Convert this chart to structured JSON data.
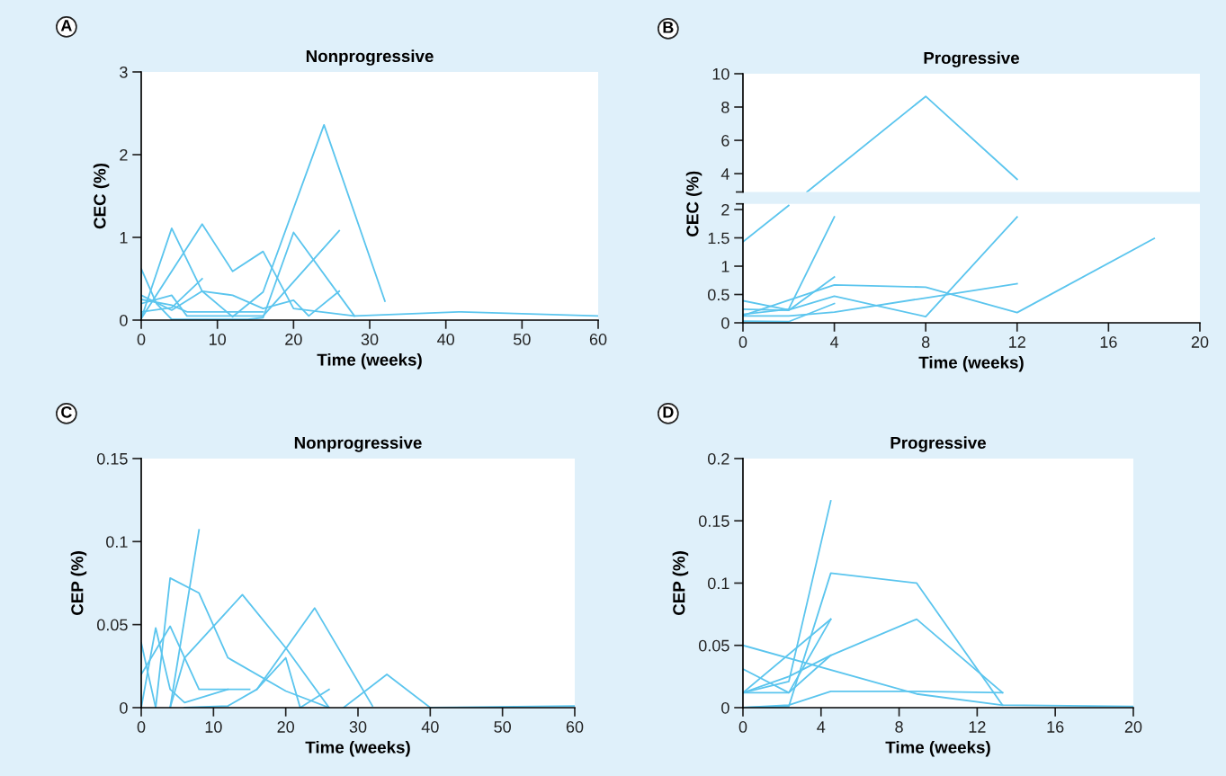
{
  "chart_data": [
    {
      "type": "line",
      "title": "Nonprogressive",
      "xlabel": "Time (weeks)",
      "ylabel": "CEC (%)",
      "annotations": [
        "A"
      ],
      "xlim": [
        0,
        60
      ],
      "ylim": [
        0,
        3
      ],
      "xticks": [
        0,
        10,
        20,
        30,
        40,
        50,
        60
      ],
      "yticks": [
        0,
        1,
        2,
        3
      ],
      "series": [
        {
          "color": "#5bc5ee",
          "x": [
            0,
            4,
            8,
            12,
            16,
            24,
            32
          ],
          "values": [
            0.02,
            1.11,
            0.35,
            0.04,
            0.34,
            2.36,
            0.23
          ]
        },
        {
          "color": "#5bc5ee",
          "x": [
            0,
            8,
            12,
            16,
            20,
            28,
            42,
            60
          ],
          "values": [
            0.02,
            1.16,
            0.59,
            0.83,
            0.14,
            0.05,
            0.1,
            0.05
          ]
        },
        {
          "color": "#5bc5ee",
          "x": [
            0,
            2,
            4,
            14,
            16,
            20,
            28
          ],
          "values": [
            0.62,
            0.2,
            0.01,
            0.01,
            0.03,
            1.06,
            0.05
          ]
        },
        {
          "color": "#5bc5ee",
          "x": [
            0,
            4,
            8,
            12,
            16,
            20,
            22,
            26
          ],
          "values": [
            0.3,
            0.12,
            0.35,
            0.3,
            0.14,
            0.24,
            0.05,
            0.35
          ]
        },
        {
          "color": "#5bc5ee",
          "x": [
            0,
            4,
            6,
            16,
            26
          ],
          "values": [
            0.2,
            0.3,
            0.05,
            0.05,
            1.08
          ]
        },
        {
          "color": "#5bc5ee",
          "x": [
            0,
            4,
            8
          ],
          "values": [
            0.1,
            0.15,
            0.5
          ]
        },
        {
          "color": "#5bc5ee",
          "x": [
            0,
            4,
            6,
            16
          ],
          "values": [
            0.25,
            0.18,
            0.1,
            0.1
          ]
        }
      ]
    },
    {
      "type": "line",
      "title": "Progressive",
      "annotations": [
        "B"
      ],
      "xlim": [
        0,
        20
      ],
      "ylim": [
        2.9,
        10
      ],
      "yticks": [
        4,
        6,
        8,
        10
      ],
      "tick_labels": "y",
      "series": [
        {
          "color": "#5bc5ee",
          "x": [
            2.8,
            8,
            12
          ],
          "values": [
            2.9,
            8.64,
            3.66
          ]
        }
      ]
    },
    {
      "type": "line",
      "xlabel": "Time (weeks)",
      "ylabel": "CEC (%)",
      "xlim": [
        0,
        20
      ],
      "ylim": [
        0,
        2.1
      ],
      "xticks": [
        0,
        4,
        8,
        12,
        16,
        20
      ],
      "yticks": [
        0,
        0.5,
        1,
        1.5,
        2
      ],
      "series": [
        {
          "color": "#5bc5ee",
          "x": [
            0,
            2
          ],
          "values": [
            1.43,
            2.07
          ]
        },
        {
          "color": "#5bc5ee",
          "x": [
            0,
            2,
            4
          ],
          "values": [
            0.15,
            0.24,
            1.87
          ]
        },
        {
          "color": "#5bc5ee",
          "x": [
            0,
            2,
            4,
            8,
            12
          ],
          "values": [
            0.39,
            0.23,
            0.47,
            0.11,
            1.87
          ]
        },
        {
          "color": "#5bc5ee",
          "x": [
            0,
            4,
            8,
            12,
            18
          ],
          "values": [
            0.13,
            0.67,
            0.63,
            0.18,
            1.49
          ]
        },
        {
          "color": "#5bc5ee",
          "x": [
            0,
            2,
            4
          ],
          "values": [
            0.24,
            0.22,
            0.81
          ]
        },
        {
          "color": "#5bc5ee",
          "x": [
            0,
            2,
            4,
            8,
            12
          ],
          "values": [
            0.12,
            0.12,
            0.19,
            0.44,
            0.69
          ]
        },
        {
          "color": "#5bc5ee",
          "x": [
            0,
            2,
            4
          ],
          "values": [
            0.03,
            0.02,
            0.34
          ]
        }
      ]
    },
    {
      "type": "line",
      "title": "Nonprogressive",
      "xlabel": "Time (weeks)",
      "ylabel": "CEP (%)",
      "annotations": [
        "C"
      ],
      "xlim": [
        0,
        60
      ],
      "ylim": [
        0,
        0.15
      ],
      "xticks": [
        0,
        10,
        20,
        30,
        40,
        50,
        60
      ],
      "yticks": [
        0,
        0.05,
        0.1,
        0.15
      ],
      "series": [
        {
          "color": "#5bc5ee",
          "x": [
            0,
            4,
            8,
            13,
            15
          ],
          "values": [
            0.02,
            0.049,
            0.011,
            0.011,
            0.011
          ]
        },
        {
          "color": "#5bc5ee",
          "x": [
            0,
            2
          ],
          "values": [
            0.039,
            0
          ]
        },
        {
          "color": "#5bc5ee",
          "x": [
            0,
            2,
            4,
            6,
            12
          ],
          "values": [
            0,
            0.048,
            0.011,
            0.003,
            0.011
          ]
        },
        {
          "color": "#5bc5ee",
          "x": [
            4,
            8
          ],
          "values": [
            0,
            0.107
          ]
        },
        {
          "color": "#5bc5ee",
          "x": [
            2,
            4,
            8,
            12,
            20,
            26
          ],
          "values": [
            0,
            0.078,
            0.069,
            0.03,
            0.01,
            0
          ]
        },
        {
          "color": "#5bc5ee",
          "x": [
            4,
            6,
            14,
            20,
            26
          ],
          "values": [
            0,
            0.03,
            0.068,
            0.036,
            0
          ]
        },
        {
          "color": "#5bc5ee",
          "x": [
            6,
            12,
            16,
            20,
            22,
            26
          ],
          "values": [
            0,
            0.001,
            0.011,
            0.03,
            0,
            0.011
          ]
        },
        {
          "color": "#5bc5ee",
          "x": [
            16,
            24,
            32
          ],
          "values": [
            0.011,
            0.06,
            0.001
          ]
        },
        {
          "color": "#5bc5ee",
          "x": [
            28,
            34,
            40,
            60
          ],
          "values": [
            0,
            0.02,
            0,
            0.001
          ]
        }
      ]
    },
    {
      "type": "line",
      "title": "Progressive",
      "xlabel": "Time (weeks)",
      "ylabel": "CEP (%)",
      "annotations": [
        "D"
      ],
      "xlim": [
        0,
        20
      ],
      "ylim": [
        0,
        0.2
      ],
      "xticks": [
        0,
        4,
        8,
        12,
        16,
        20
      ],
      "yticks": [
        0,
        0.05,
        0.1,
        0.15,
        0.2
      ],
      "series": [
        {
          "color": "#5bc5ee",
          "x": [
            0,
            2.35,
            4.5
          ],
          "values": [
            0.012,
            0.021,
            0.166
          ]
        },
        {
          "color": "#5bc5ee",
          "x": [
            0,
            2.35,
            4.5,
            8.9,
            13.3,
            20
          ],
          "values": [
            0,
            0.001,
            0.108,
            0.1,
            0.002,
            0.001
          ]
        },
        {
          "color": "#5bc5ee",
          "x": [
            0,
            2.35,
            4.5
          ],
          "values": [
            0.012,
            0.012,
            0.071
          ]
        },
        {
          "color": "#5bc5ee",
          "x": [
            0,
            4.5
          ],
          "values": [
            0.012,
            0.071
          ]
        },
        {
          "color": "#5bc5ee",
          "x": [
            0,
            2.35,
            4.5,
            8.9,
            13.3
          ],
          "values": [
            0.031,
            0.012,
            0.042,
            0.071,
            0.012
          ]
        },
        {
          "color": "#5bc5ee",
          "x": [
            0,
            8.9,
            13.3
          ],
          "values": [
            0.05,
            0.011,
            0.002
          ]
        },
        {
          "color": "#5bc5ee",
          "x": [
            0,
            2.35,
            4.5,
            8.9,
            13.3
          ],
          "values": [
            0,
            0.002,
            0.013,
            0.013,
            0.012
          ]
        },
        {
          "color": "#5bc5ee",
          "x": [
            0,
            2.35,
            4.5
          ],
          "values": [
            0.012,
            0.025,
            0.042
          ]
        }
      ]
    }
  ]
}
